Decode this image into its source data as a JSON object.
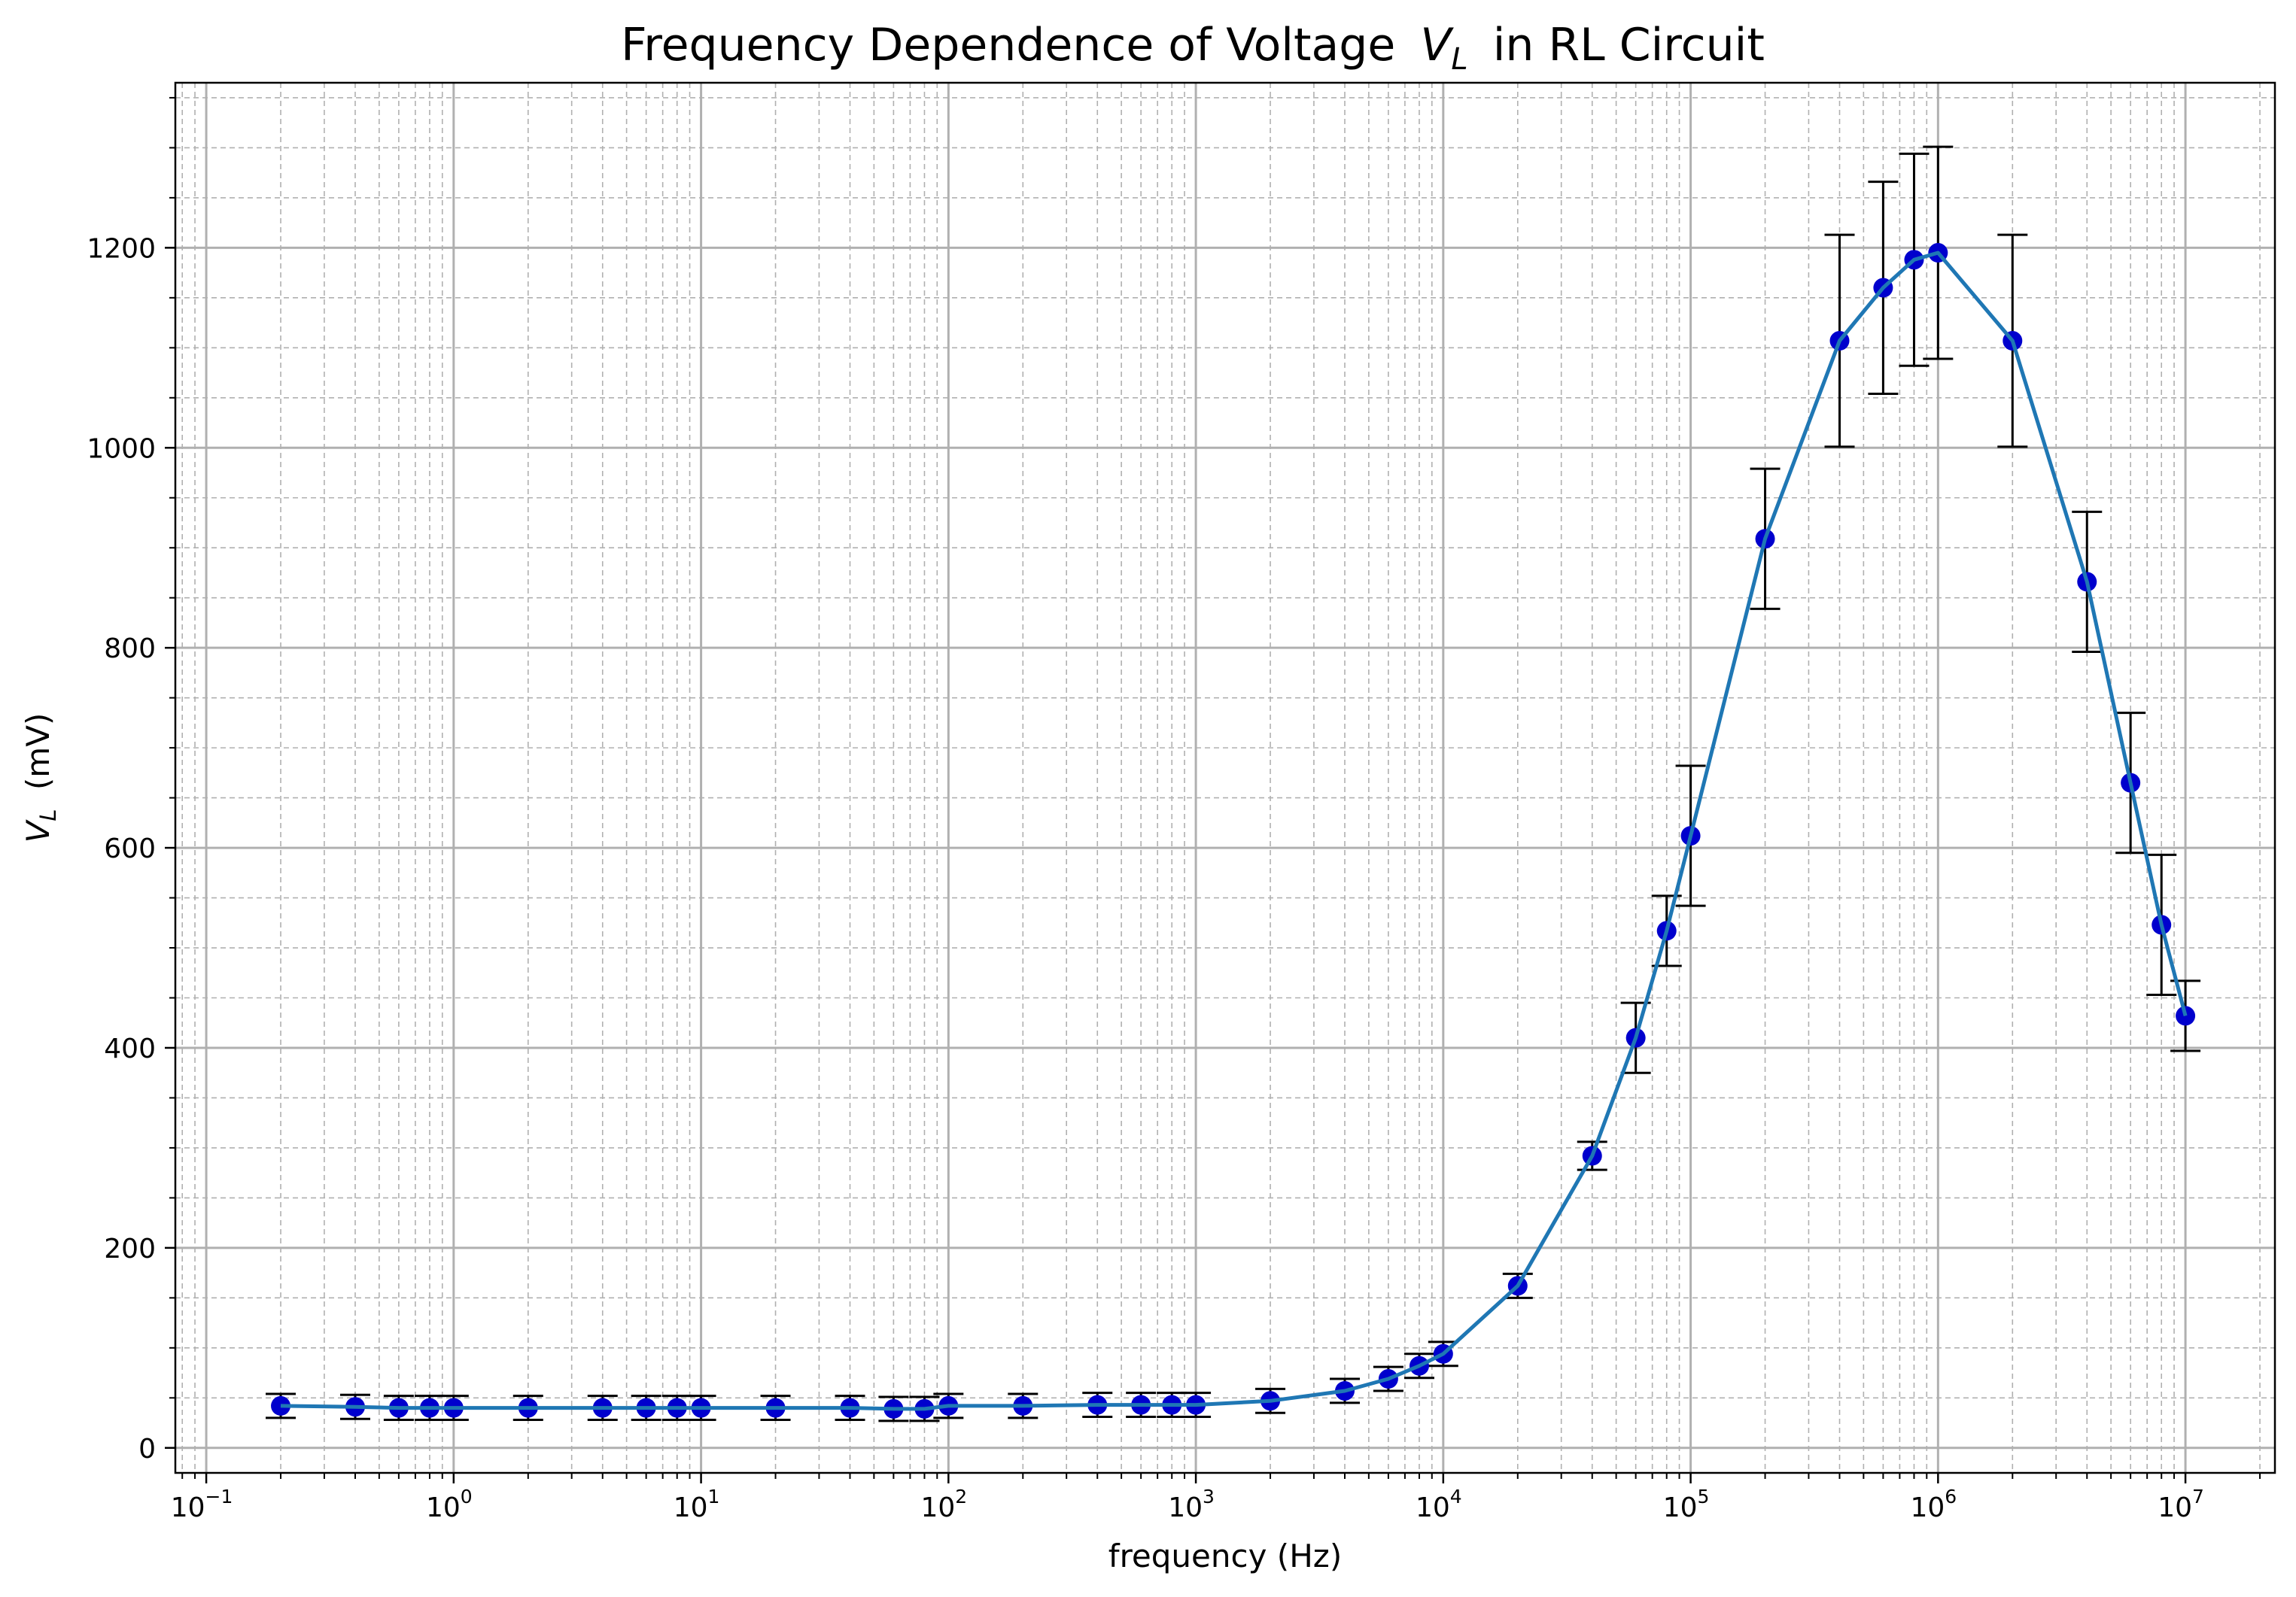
{
  "chart_data": {
    "type": "line",
    "title": "Frequency Dependence of Voltage",
    "title_symbol": "V",
    "title_subscript": "L",
    "title_suffix": "in RL Circuit",
    "xlabel": "frequency (Hz)",
    "ylabel_symbol": "V",
    "ylabel_subscript": "L",
    "ylabel_suffix": "(mV)",
    "xscale": "log",
    "xlim": [
      0.075,
      23000000.0
    ],
    "ylim": [
      -25,
      1365
    ],
    "x_tick_exponents": [
      "-1",
      "0",
      "1",
      "2",
      "3",
      "4",
      "5",
      "6",
      "7"
    ],
    "x_tick_base": "10",
    "y_ticks": [
      "0",
      "200",
      "400",
      "600",
      "800",
      "1000",
      "1200"
    ],
    "grid": "both",
    "line_color": "#1f77b4",
    "marker_color": "#0000cd",
    "errorbar_color": "#000000",
    "series": [
      {
        "x": [
          0.2,
          0.4,
          0.6,
          0.8,
          1,
          2,
          4,
          6,
          8,
          10,
          20,
          40,
          60,
          80,
          100,
          200,
          400,
          600,
          800,
          1000,
          2000,
          4000,
          6000,
          8000,
          10000,
          20000,
          40000,
          60000,
          80000,
          100000,
          200000,
          400000,
          600000,
          800000,
          1000000,
          2000000,
          4000000,
          6000000,
          8000000,
          10000000
        ],
        "y": [
          42,
          41,
          40,
          40,
          40,
          40,
          40,
          40,
          40,
          40,
          40,
          40,
          39,
          39,
          42,
          42,
          43,
          43,
          43,
          43,
          47,
          57,
          69,
          82,
          94,
          162,
          292,
          410,
          517,
          612,
          909,
          1107,
          1160,
          1188,
          1195,
          1107,
          866,
          665,
          523,
          432
        ],
        "yerr": [
          12,
          12,
          12,
          12,
          12,
          12,
          12,
          12,
          12,
          12,
          12,
          12,
          12,
          12,
          12,
          12,
          12,
          12,
          12,
          12,
          12,
          12,
          12,
          12,
          12,
          12,
          14,
          35,
          35,
          70,
          70,
          106,
          106,
          106,
          106,
          106,
          70,
          70,
          70,
          35
        ]
      }
    ]
  }
}
